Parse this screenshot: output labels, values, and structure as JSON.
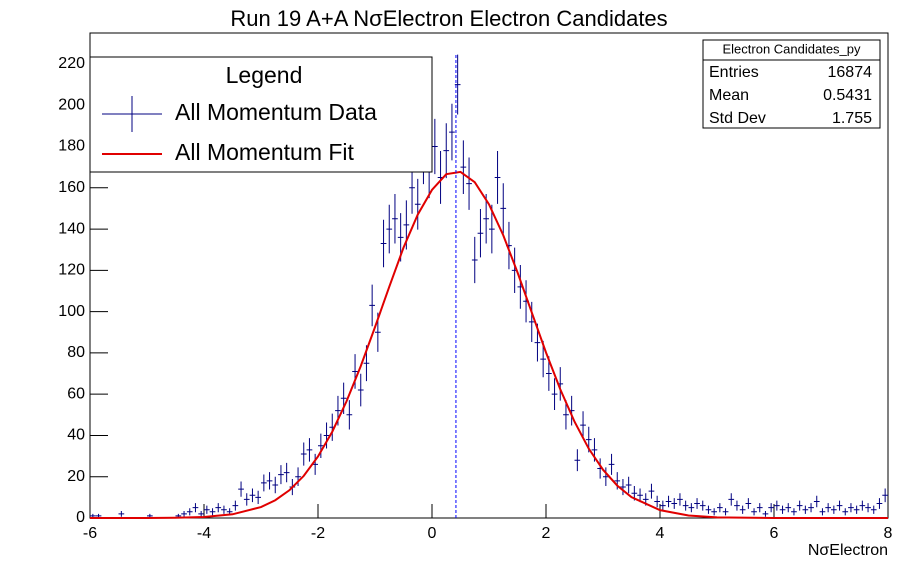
{
  "chart_data": {
    "type": "histogram",
    "title": "Run 19 A+A NσElectron Electron Candidates",
    "x_label": "NσElectron",
    "xlim": [
      -6,
      8
    ],
    "ylim": [
      0,
      235
    ],
    "xticks": [
      -6,
      -4,
      -2,
      0,
      2,
      4,
      6,
      8
    ],
    "yticks": [
      0,
      20,
      40,
      60,
      80,
      100,
      120,
      140,
      160,
      180,
      200,
      220
    ],
    "bins": [
      -6,
      -5.9,
      -5.8,
      -5.7,
      -5.6,
      -5.5,
      -5.4,
      -5.3,
      -5.2,
      -5.1,
      -5,
      -4.9,
      -4.8,
      -4.7,
      -4.6,
      -4.5,
      -4.4,
      -4.3,
      -4.2,
      -4.1,
      -4,
      -3.9,
      -3.8,
      -3.7,
      -3.6,
      -3.5,
      -3.4,
      -3.3,
      -3.2,
      -3.1,
      -3,
      -2.9,
      -2.8,
      -2.7,
      -2.6,
      -2.5,
      -2.4,
      -2.3,
      -2.2,
      -2.1,
      -2,
      -1.9,
      -1.8,
      -1.7,
      -1.6,
      -1.5,
      -1.4,
      -1.3,
      -1.2,
      -1.1,
      -1,
      -0.9,
      -0.8,
      -0.7,
      -0.6,
      -0.5,
      -0.4,
      -0.3,
      -0.2,
      -0.1,
      0,
      0.1,
      0.2,
      0.3,
      0.4,
      0.5,
      0.6,
      0.7,
      0.8,
      0.9,
      1,
      1.1,
      1.2,
      1.3,
      1.4,
      1.5,
      1.6,
      1.7,
      1.8,
      1.9,
      2,
      2.1,
      2.2,
      2.3,
      2.4,
      2.5,
      2.6,
      2.7,
      2.8,
      2.9,
      3,
      3.1,
      3.2,
      3.3,
      3.4,
      3.5,
      3.6,
      3.7,
      3.8,
      3.9,
      4,
      4.1,
      4.2,
      4.3,
      4.4,
      4.5,
      4.6,
      4.7,
      4.8,
      4.9,
      5,
      5.1,
      5.2,
      5.3,
      5.4,
      5.5,
      5.6,
      5.7,
      5.8,
      5.9,
      6,
      6.1,
      6.2,
      6.3,
      6.4,
      6.5,
      6.6,
      6.7,
      6.8,
      6.9,
      7,
      7.1,
      7.2,
      7.3,
      7.4,
      7.5,
      7.6,
      7.7,
      7.8,
      7.9,
      8
    ],
    "series": [
      {
        "name": "All Momentum Data",
        "color": "#000080",
        "values": [
          1,
          1,
          0,
          0,
          0,
          2,
          0,
          0,
          0,
          0,
          1,
          0,
          0,
          0,
          0,
          1,
          2,
          3,
          5,
          2,
          4,
          3,
          5,
          4,
          3,
          6,
          14,
          9,
          11,
          10,
          17,
          18,
          16,
          21,
          22,
          15,
          20,
          31,
          33,
          26,
          35,
          40,
          44,
          52,
          58,
          50,
          71,
          62,
          75,
          103,
          90,
          133,
          140,
          145,
          136,
          142,
          160,
          152,
          175,
          168,
          180,
          165,
          178,
          187,
          210,
          170,
          162,
          125,
          138,
          145,
          140,
          165,
          150,
          132,
          120,
          112,
          105,
          95,
          85,
          77,
          70,
          60,
          65,
          50,
          52,
          28,
          45,
          38,
          33,
          24,
          20,
          26,
          18,
          15,
          16,
          12,
          11,
          9,
          13,
          8,
          6,
          8,
          7,
          9,
          6,
          5,
          7,
          6,
          4,
          3,
          5,
          3,
          9,
          6,
          4,
          7,
          3,
          5,
          2,
          5,
          6,
          4,
          5,
          3,
          6,
          4,
          5,
          8,
          3,
          5,
          4,
          6,
          3,
          5,
          4,
          6,
          5,
          4,
          7,
          11
        ],
        "errors": [
          1,
          1,
          0,
          0,
          0,
          1.4,
          0,
          0,
          0,
          0,
          1,
          0,
          0,
          0,
          0,
          1,
          1.4,
          1.7,
          2.2,
          1.4,
          2,
          1.7,
          2.2,
          2,
          1.7,
          2.4,
          3.7,
          3,
          3.3,
          3.2,
          4.1,
          4.2,
          4,
          4.6,
          4.7,
          3.9,
          4.5,
          5.6,
          5.7,
          5.1,
          5.9,
          6.3,
          6.6,
          7.2,
          7.6,
          7.1,
          8.4,
          7.9,
          8.7,
          10.1,
          9.5,
          11.5,
          11.8,
          12,
          11.7,
          11.9,
          12.6,
          12.3,
          13.2,
          13,
          13.4,
          12.8,
          13.3,
          13.7,
          14.5,
          13,
          12.7,
          11.2,
          11.7,
          12,
          11.8,
          12.8,
          12.2,
          11.5,
          11,
          10.6,
          10.2,
          9.7,
          9.2,
          8.8,
          8.4,
          7.7,
          8.1,
          7.1,
          7.2,
          5.3,
          6.7,
          6.2,
          5.7,
          4.9,
          4.5,
          5.1,
          4.2,
          3.9,
          4,
          3.5,
          3.3,
          3,
          3.6,
          2.8,
          2.4,
          2.8,
          2.6,
          3,
          2.4,
          2.2,
          2.6,
          2.4,
          2,
          1.7,
          2.2,
          1.7,
          3,
          2.4,
          2,
          2.6,
          1.7,
          2.2,
          1.4,
          2.2,
          2.4,
          2,
          2.2,
          1.7,
          2.4,
          2,
          2.2,
          2.8,
          1.7,
          2.2,
          2,
          2.4,
          1.7,
          2.2,
          2,
          2.4,
          2.2,
          2,
          2.6,
          3.3
        ]
      },
      {
        "name": "All Momentum Fit",
        "type": "line",
        "color": "#e00000",
        "x": [
          -6,
          -5,
          -4.5,
          -4,
          -3.5,
          -3,
          -2.75,
          -2.5,
          -2.25,
          -2,
          -1.75,
          -1.5,
          -1.25,
          -1,
          -0.75,
          -0.5,
          -0.25,
          0,
          0.25,
          0.5,
          0.75,
          1,
          1.25,
          1.5,
          1.75,
          2,
          2.25,
          2.5,
          2.75,
          3,
          3.25,
          3.5,
          4,
          4.5,
          5,
          6,
          7,
          8
        ],
        "values": [
          0,
          0,
          0.1,
          0.5,
          1.8,
          5.3,
          8.6,
          13.5,
          20.4,
          29.8,
          41.8,
          56.5,
          73.6,
          92.5,
          112,
          131,
          147,
          159,
          166.6,
          167.7,
          162.7,
          152,
          137,
          119,
          99.6,
          80.2,
          62.4,
          46.7,
          33.6,
          23.4,
          15.7,
          10.1,
          3.8,
          1.2,
          0.3,
          0,
          0,
          0
        ]
      }
    ],
    "vline": {
      "value": 0.42,
      "color": "#0000ff"
    },
    "legend": {
      "title": "Legend",
      "position": "upper left"
    },
    "stats": {
      "title": "Electron Candidates_py",
      "rows": [
        {
          "label": "Entries",
          "value": 16874
        },
        {
          "label": "Mean",
          "value": 0.5431
        },
        {
          "label": "Std Dev",
          "value": 1.755
        }
      ]
    }
  }
}
